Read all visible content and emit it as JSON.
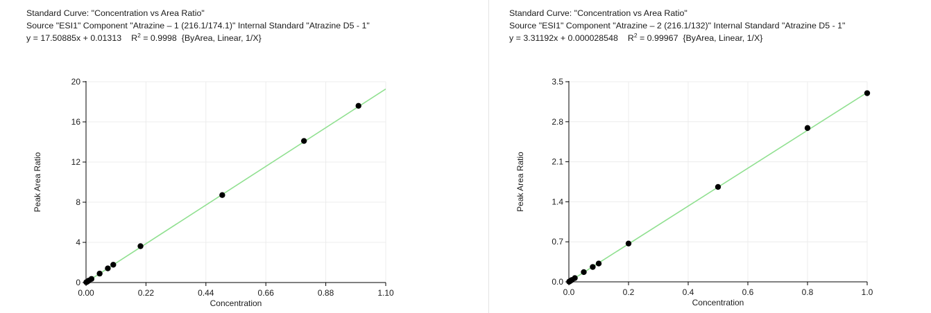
{
  "charts": [
    {
      "id": "left",
      "header": {
        "title_line": "Standard Curve: \"Concentration vs Area Ratio\"",
        "source_line": "Source \"ESI1\" Component \"Atrazine – 1 (216.1/174.1)\"  Internal Standard \"Atrazine D5 - 1\"",
        "equation": "y = 17.50885x + 0.01313",
        "r2_label": "R",
        "r2_sup": "2",
        "r2_value": " = 0.9998",
        "fit_info": "{ByArea, Linear, 1/X}"
      }
    },
    {
      "id": "right",
      "header": {
        "title_line": "Standard Curve: \"Concentration vs Area Ratio\"",
        "source_line": "Source \"ESI1\" Component \"Atrazine – 2 (216.1/132)\"  Internal Standard \"Atrazine D5 - 1\"",
        "equation": "y = 3.31192x + 0.000028548",
        "r2_label": "R",
        "r2_sup": "2",
        "r2_value": " = 0.99967",
        "fit_info": "{ByArea, Linear, 1/X}"
      }
    }
  ],
  "chart_data": [
    {
      "type": "scatter",
      "title": "Standard Curve: \"Concentration vs Area Ratio\"",
      "xlabel": "Concentration",
      "ylabel": "Peak Area Ratio",
      "xlim": [
        0,
        1.1
      ],
      "ylim": [
        0,
        20
      ],
      "x_ticks": [
        0,
        0.22,
        0.44,
        0.66,
        0.88,
        1.1
      ],
      "x_tick_labels": [
        "0.00",
        "0.22",
        "0.44",
        "0.66",
        "0.88",
        "1.10"
      ],
      "y_ticks": [
        0,
        4,
        8,
        12,
        16,
        20
      ],
      "y_tick_labels": [
        "0",
        "4",
        "8",
        "12",
        "16",
        "20"
      ],
      "grid": true,
      "fit": {
        "slope": 17.50885,
        "intercept": 0.01313,
        "r2": 0.9998,
        "color": "#90e090"
      },
      "point_color": "#000000",
      "points": {
        "x": [
          0.001,
          0.005,
          0.01,
          0.02,
          0.05,
          0.08,
          0.1,
          0.2,
          0.5,
          0.8,
          1.0
        ],
        "y": [
          0.03,
          0.1,
          0.19,
          0.36,
          0.89,
          1.41,
          1.77,
          3.62,
          8.71,
          14.1,
          17.6
        ]
      }
    },
    {
      "type": "scatter",
      "title": "Standard Curve: \"Concentration vs Area Ratio\"",
      "xlabel": "Concentration",
      "ylabel": "Peak Area Ratio",
      "xlim": [
        0,
        1.0
      ],
      "ylim": [
        0,
        3.5
      ],
      "x_ticks": [
        0,
        0.2,
        0.4,
        0.6,
        0.8,
        1.0
      ],
      "x_tick_labels": [
        "0.0",
        "0.2",
        "0.4",
        "0.6",
        "0.8",
        "1.0"
      ],
      "y_ticks": [
        0,
        0.7,
        1.4,
        2.1,
        2.8,
        3.5
      ],
      "y_tick_labels": [
        "0.0",
        "0.7",
        "1.4",
        "2.1",
        "2.8",
        "3.5"
      ],
      "grid": true,
      "fit": {
        "slope": 3.31192,
        "intercept": 2.8548e-05,
        "r2": 0.99967,
        "color": "#90e090"
      },
      "point_color": "#000000",
      "points": {
        "x": [
          0.001,
          0.005,
          0.01,
          0.02,
          0.05,
          0.08,
          0.1,
          0.2,
          0.5,
          0.8,
          1.0
        ],
        "y": [
          0.003,
          0.017,
          0.033,
          0.066,
          0.17,
          0.26,
          0.32,
          0.67,
          1.66,
          2.69,
          3.3
        ]
      }
    }
  ]
}
